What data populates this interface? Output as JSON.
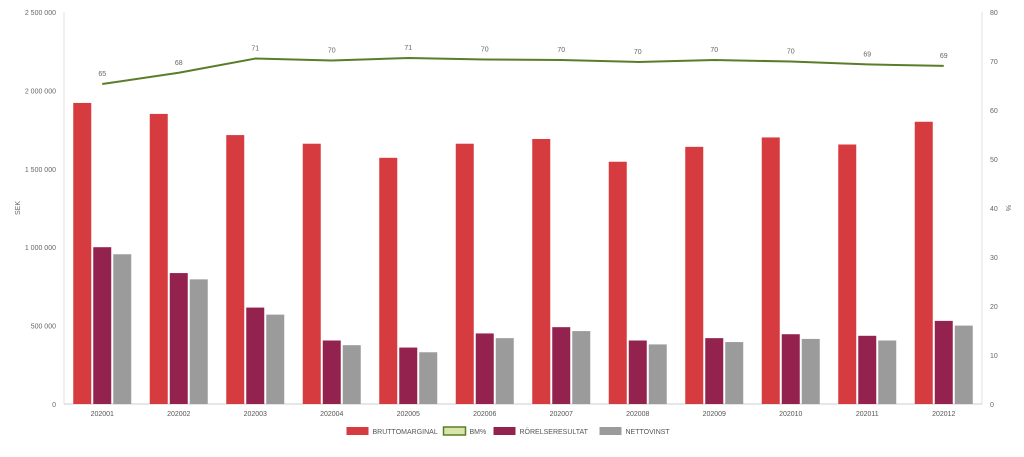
{
  "chart_data": {
    "type": "bar",
    "categories": [
      "202001",
      "202002",
      "202003",
      "202004",
      "202005",
      "202006",
      "202007",
      "202008",
      "202009",
      "202010",
      "202011",
      "202012"
    ],
    "series": [
      {
        "name": "BRUTTOMARGINAL",
        "type": "bar",
        "axis": "left",
        "color": "#d63b3f",
        "values": [
          1920000,
          1850000,
          1715000,
          1660000,
          1570000,
          1660000,
          1690000,
          1545000,
          1640000,
          1700000,
          1655000,
          1800000
        ]
      },
      {
        "name": "BM%",
        "type": "line",
        "axis": "right",
        "color": "#5a7d2a",
        "legend_fill": "#d9e4a8",
        "values": [
          65,
          68,
          71,
          70,
          71,
          70,
          70,
          70,
          70,
          70,
          69,
          69
        ],
        "plot_values": [
          65.3,
          67.6,
          70.5,
          70.1,
          70.6,
          70.3,
          70.2,
          69.8,
          70.2,
          69.9,
          69.3,
          69.0
        ]
      },
      {
        "name": "RÖRELSERESULTAT",
        "type": "bar",
        "axis": "left",
        "color": "#93224f",
        "values": [
          1000000,
          835000,
          615000,
          405000,
          360000,
          450000,
          490000,
          405000,
          420000,
          445000,
          435000,
          530000
        ]
      },
      {
        "name": "NETTOVINST",
        "type": "bar",
        "axis": "left",
        "color": "#9b9b9b",
        "values": [
          955000,
          795000,
          570000,
          375000,
          330000,
          420000,
          465000,
          380000,
          395000,
          415000,
          405000,
          500000
        ]
      }
    ],
    "y_left": {
      "label": "SEK",
      "min": 0,
      "max": 2500000,
      "ticks": [
        0,
        500000,
        1000000,
        1500000,
        2000000,
        2500000
      ],
      "tick_labels": [
        "0",
        "500 000",
        "1 000 000",
        "1 500 000",
        "2 000 000",
        "2 500 000"
      ]
    },
    "y_right": {
      "label": "%",
      "min": 0,
      "max": 80,
      "ticks": [
        0,
        10,
        20,
        30,
        40,
        50,
        60,
        70,
        80
      ],
      "tick_labels": [
        "0",
        "10",
        "20",
        "30",
        "40",
        "50",
        "60",
        "70",
        "80"
      ]
    },
    "grid": false,
    "legend_position": "bottom-center",
    "legend": [
      "BRUTTOMARGINAL",
      "BM%",
      "RÖRELSERESULTAT",
      "NETTOVINST"
    ]
  }
}
